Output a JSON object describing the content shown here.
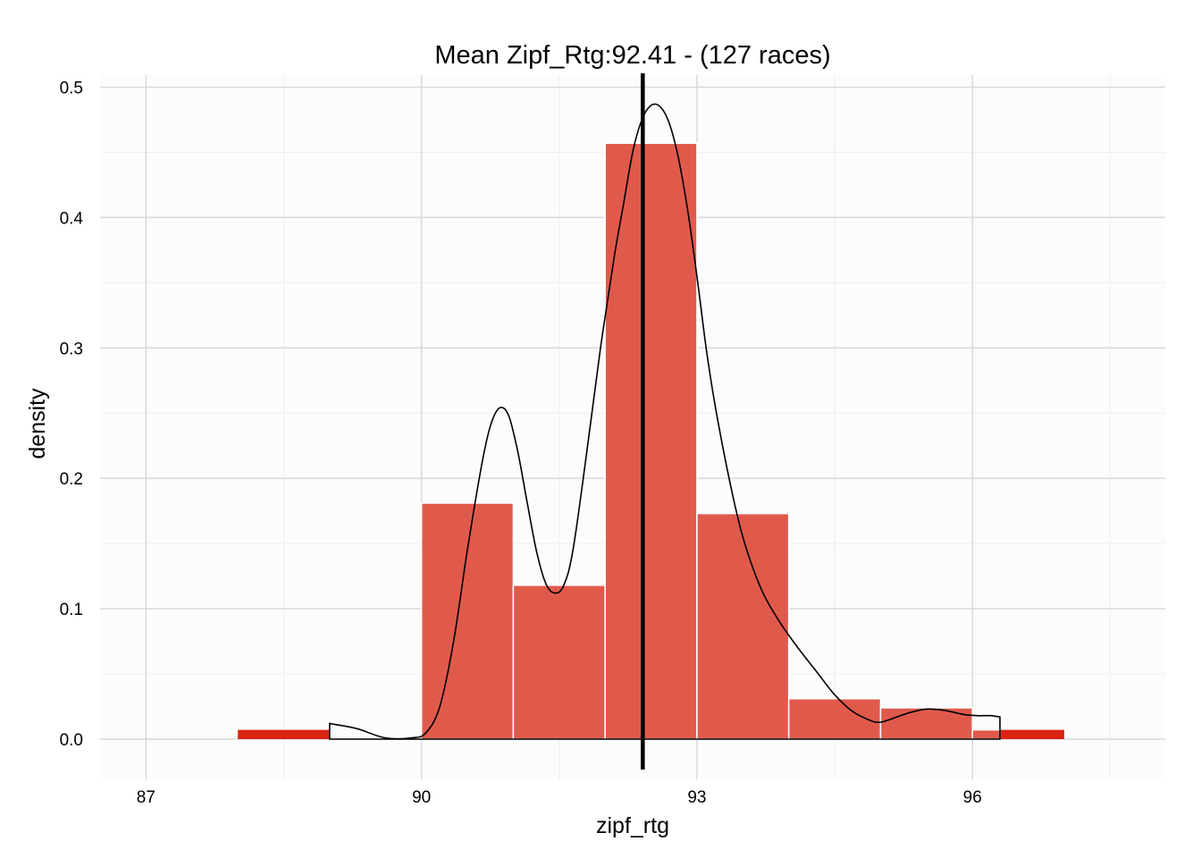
{
  "chart_data": {
    "type": "bar",
    "title": "Mean Zipf_Rtg:92.41 - (127 races)",
    "xlabel": "zipf_rtg",
    "ylabel": "density",
    "xlim": [
      86.5,
      98.1
    ],
    "ylim": [
      -0.0214,
      0.5
    ],
    "x_ticks": [
      87,
      90,
      93,
      96
    ],
    "x_tick_labels": [
      "87",
      "90",
      "93",
      "96"
    ],
    "y_ticks": [
      0.0,
      0.1,
      0.2,
      0.3,
      0.4,
      0.5
    ],
    "y_tick_labels": [
      "0.0",
      "0.1",
      "0.2",
      "0.3",
      "0.4",
      "0.5"
    ],
    "grid": true,
    "mean_line": 92.41,
    "colors": {
      "background": "#ffffff",
      "panel": "#fcfcfc",
      "grid_major": "#d9d9d9",
      "grid_minor": "#efefef",
      "bar_dark": "#d92414",
      "bar_light": "#e05a4c",
      "bar_border": "#ffffff",
      "density_line": "#000000",
      "mean_line": "#000000"
    },
    "bars_dark": [
      {
        "x0": 88.0,
        "x1": 89.0,
        "value": 0.0071
      },
      {
        "x0": 89.0,
        "x1": 90.0,
        "value": 0.0
      },
      {
        "x0": 90.0,
        "x1": 91.0,
        "value": 0.181
      },
      {
        "x0": 91.0,
        "x1": 92.0,
        "value": 0.118
      },
      {
        "x0": 92.0,
        "x1": 93.0,
        "value": 0.457
      },
      {
        "x0": 93.0,
        "x1": 94.0,
        "value": 0.173
      },
      {
        "x0": 94.0,
        "x1": 95.0,
        "value": 0.031
      },
      {
        "x0": 95.0,
        "x1": 96.0,
        "value": 0.024
      },
      {
        "x0": 96.0,
        "x1": 97.0,
        "value": 0.0071
      }
    ],
    "bars_light": [
      {
        "x0": 90.0,
        "x1": 91.0,
        "value": 0.181
      },
      {
        "x0": 91.0,
        "x1": 92.0,
        "value": 0.118
      },
      {
        "x0": 92.0,
        "x1": 93.0,
        "value": 0.457
      },
      {
        "x0": 93.0,
        "x1": 94.0,
        "value": 0.173
      },
      {
        "x0": 94.0,
        "x1": 95.0,
        "value": 0.031
      },
      {
        "x0": 95.0,
        "x1": 96.0,
        "value": 0.024
      },
      {
        "x0": 96.0,
        "x1": 96.3,
        "value": 0.0071
      }
    ],
    "density_curve": {
      "x": [
        89.0,
        89.3,
        89.6,
        89.9,
        90.05,
        90.2,
        90.35,
        90.5,
        90.65,
        90.75,
        90.85,
        90.95,
        91.05,
        91.15,
        91.25,
        91.35,
        91.45,
        91.55,
        91.65,
        91.8,
        91.95,
        92.1,
        92.2,
        92.3,
        92.4,
        92.5,
        92.6,
        92.7,
        92.8,
        92.9,
        93.0,
        93.1,
        93.2,
        93.35,
        93.5,
        93.7,
        93.9,
        94.1,
        94.3,
        94.5,
        94.7,
        94.9,
        95.0,
        95.1,
        95.3,
        95.5,
        95.7,
        95.9,
        96.05,
        96.2,
        96.3
      ],
      "y": [
        0.012,
        0.008,
        0.001,
        0.001,
        0.005,
        0.025,
        0.075,
        0.145,
        0.208,
        0.24,
        0.254,
        0.248,
        0.22,
        0.182,
        0.145,
        0.12,
        0.112,
        0.118,
        0.145,
        0.22,
        0.3,
        0.37,
        0.41,
        0.45,
        0.475,
        0.486,
        0.485,
        0.472,
        0.445,
        0.405,
        0.355,
        0.3,
        0.255,
        0.2,
        0.155,
        0.115,
        0.09,
        0.07,
        0.052,
        0.034,
        0.021,
        0.014,
        0.013,
        0.015,
        0.02,
        0.023,
        0.022,
        0.019,
        0.018,
        0.018,
        0.017
      ]
    }
  }
}
